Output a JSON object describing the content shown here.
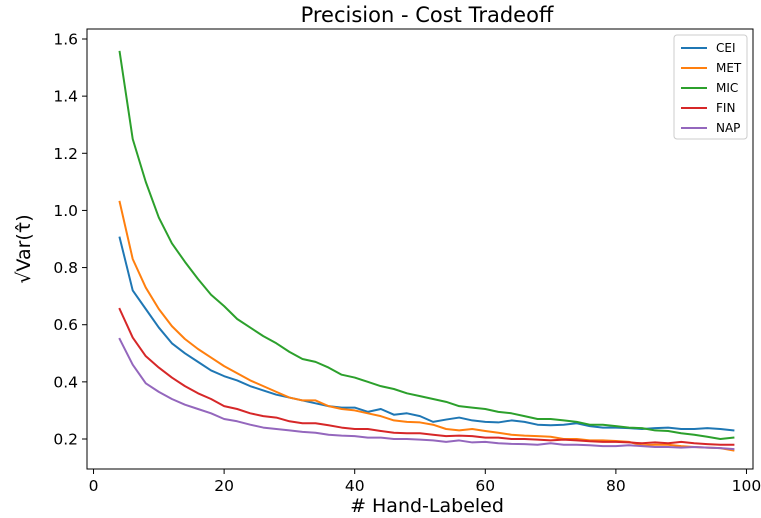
{
  "chart_data": {
    "type": "line",
    "title": "Precision - Cost Tradeoff",
    "xlabel": "# Hand-Labeled",
    "ylabel": "√Var(τ̂)",
    "xlim": [
      -1,
      101
    ],
    "ylim": [
      0.095,
      1.635
    ],
    "xticks": [
      0,
      20,
      40,
      60,
      80,
      100
    ],
    "yticks": [
      0.2,
      0.4,
      0.6,
      0.8,
      1.0,
      1.2,
      1.4,
      1.6
    ],
    "xtick_labels": [
      "0",
      "20",
      "40",
      "60",
      "80",
      "100"
    ],
    "ytick_labels": [
      "0.2",
      "0.4",
      "0.6",
      "0.8",
      "1.0",
      "1.2",
      "1.4",
      "1.6"
    ],
    "grid": false,
    "legend_position": "top-right",
    "x": [
      4,
      6,
      8,
      10,
      12,
      14,
      16,
      18,
      20,
      22,
      24,
      26,
      28,
      30,
      32,
      34,
      36,
      38,
      40,
      42,
      44,
      46,
      48,
      50,
      52,
      54,
      56,
      58,
      60,
      62,
      64,
      66,
      68,
      70,
      72,
      74,
      76,
      78,
      80,
      82,
      84,
      86,
      88,
      90,
      92,
      94,
      96,
      98
    ],
    "series": [
      {
        "name": "CEI",
        "color": "#1f77b4",
        "values": [
          0.905,
          0.72,
          0.655,
          0.59,
          0.535,
          0.5,
          0.47,
          0.44,
          0.42,
          0.405,
          0.385,
          0.37,
          0.355,
          0.345,
          0.335,
          0.325,
          0.315,
          0.31,
          0.31,
          0.295,
          0.305,
          0.285,
          0.29,
          0.28,
          0.26,
          0.268,
          0.275,
          0.265,
          0.26,
          0.258,
          0.265,
          0.26,
          0.25,
          0.248,
          0.25,
          0.255,
          0.245,
          0.24,
          0.24,
          0.238,
          0.235,
          0.238,
          0.24,
          0.235,
          0.235,
          0.238,
          0.235,
          0.23
        ]
      },
      {
        "name": "MET",
        "color": "#ff7f0e",
        "values": [
          1.03,
          0.83,
          0.73,
          0.655,
          0.595,
          0.55,
          0.515,
          0.485,
          0.455,
          0.43,
          0.405,
          0.385,
          0.365,
          0.345,
          0.335,
          0.335,
          0.315,
          0.305,
          0.3,
          0.29,
          0.28,
          0.265,
          0.26,
          0.258,
          0.25,
          0.235,
          0.23,
          0.235,
          0.228,
          0.222,
          0.215,
          0.212,
          0.21,
          0.208,
          0.2,
          0.2,
          0.195,
          0.195,
          0.193,
          0.19,
          0.178,
          0.18,
          0.18,
          0.175,
          0.172,
          0.17,
          0.168,
          0.16
        ]
      },
      {
        "name": "MIC",
        "color": "#2ca02c",
        "values": [
          1.555,
          1.25,
          1.1,
          0.975,
          0.885,
          0.82,
          0.76,
          0.705,
          0.665,
          0.62,
          0.59,
          0.56,
          0.535,
          0.505,
          0.48,
          0.47,
          0.45,
          0.425,
          0.415,
          0.4,
          0.385,
          0.375,
          0.36,
          0.35,
          0.34,
          0.33,
          0.315,
          0.31,
          0.305,
          0.295,
          0.29,
          0.28,
          0.27,
          0.27,
          0.265,
          0.26,
          0.25,
          0.25,
          0.245,
          0.24,
          0.238,
          0.23,
          0.228,
          0.22,
          0.215,
          0.208,
          0.2,
          0.205
        ]
      },
      {
        "name": "FIN",
        "color": "#d62728",
        "values": [
          0.655,
          0.555,
          0.49,
          0.45,
          0.415,
          0.385,
          0.36,
          0.34,
          0.315,
          0.305,
          0.29,
          0.28,
          0.275,
          0.262,
          0.255,
          0.255,
          0.248,
          0.24,
          0.235,
          0.235,
          0.228,
          0.222,
          0.22,
          0.22,
          0.215,
          0.21,
          0.212,
          0.21,
          0.205,
          0.205,
          0.2,
          0.2,
          0.198,
          0.195,
          0.198,
          0.195,
          0.192,
          0.19,
          0.19,
          0.188,
          0.185,
          0.188,
          0.185,
          0.19,
          0.185,
          0.182,
          0.18,
          0.18
        ]
      },
      {
        "name": "NAP",
        "color": "#9467bd",
        "values": [
          0.55,
          0.46,
          0.395,
          0.365,
          0.34,
          0.32,
          0.305,
          0.29,
          0.27,
          0.262,
          0.25,
          0.24,
          0.235,
          0.23,
          0.225,
          0.222,
          0.215,
          0.212,
          0.21,
          0.205,
          0.205,
          0.2,
          0.2,
          0.198,
          0.195,
          0.19,
          0.195,
          0.188,
          0.19,
          0.185,
          0.183,
          0.182,
          0.18,
          0.185,
          0.18,
          0.18,
          0.178,
          0.175,
          0.175,
          0.178,
          0.175,
          0.172,
          0.172,
          0.17,
          0.172,
          0.17,
          0.168,
          0.165
        ]
      }
    ]
  }
}
